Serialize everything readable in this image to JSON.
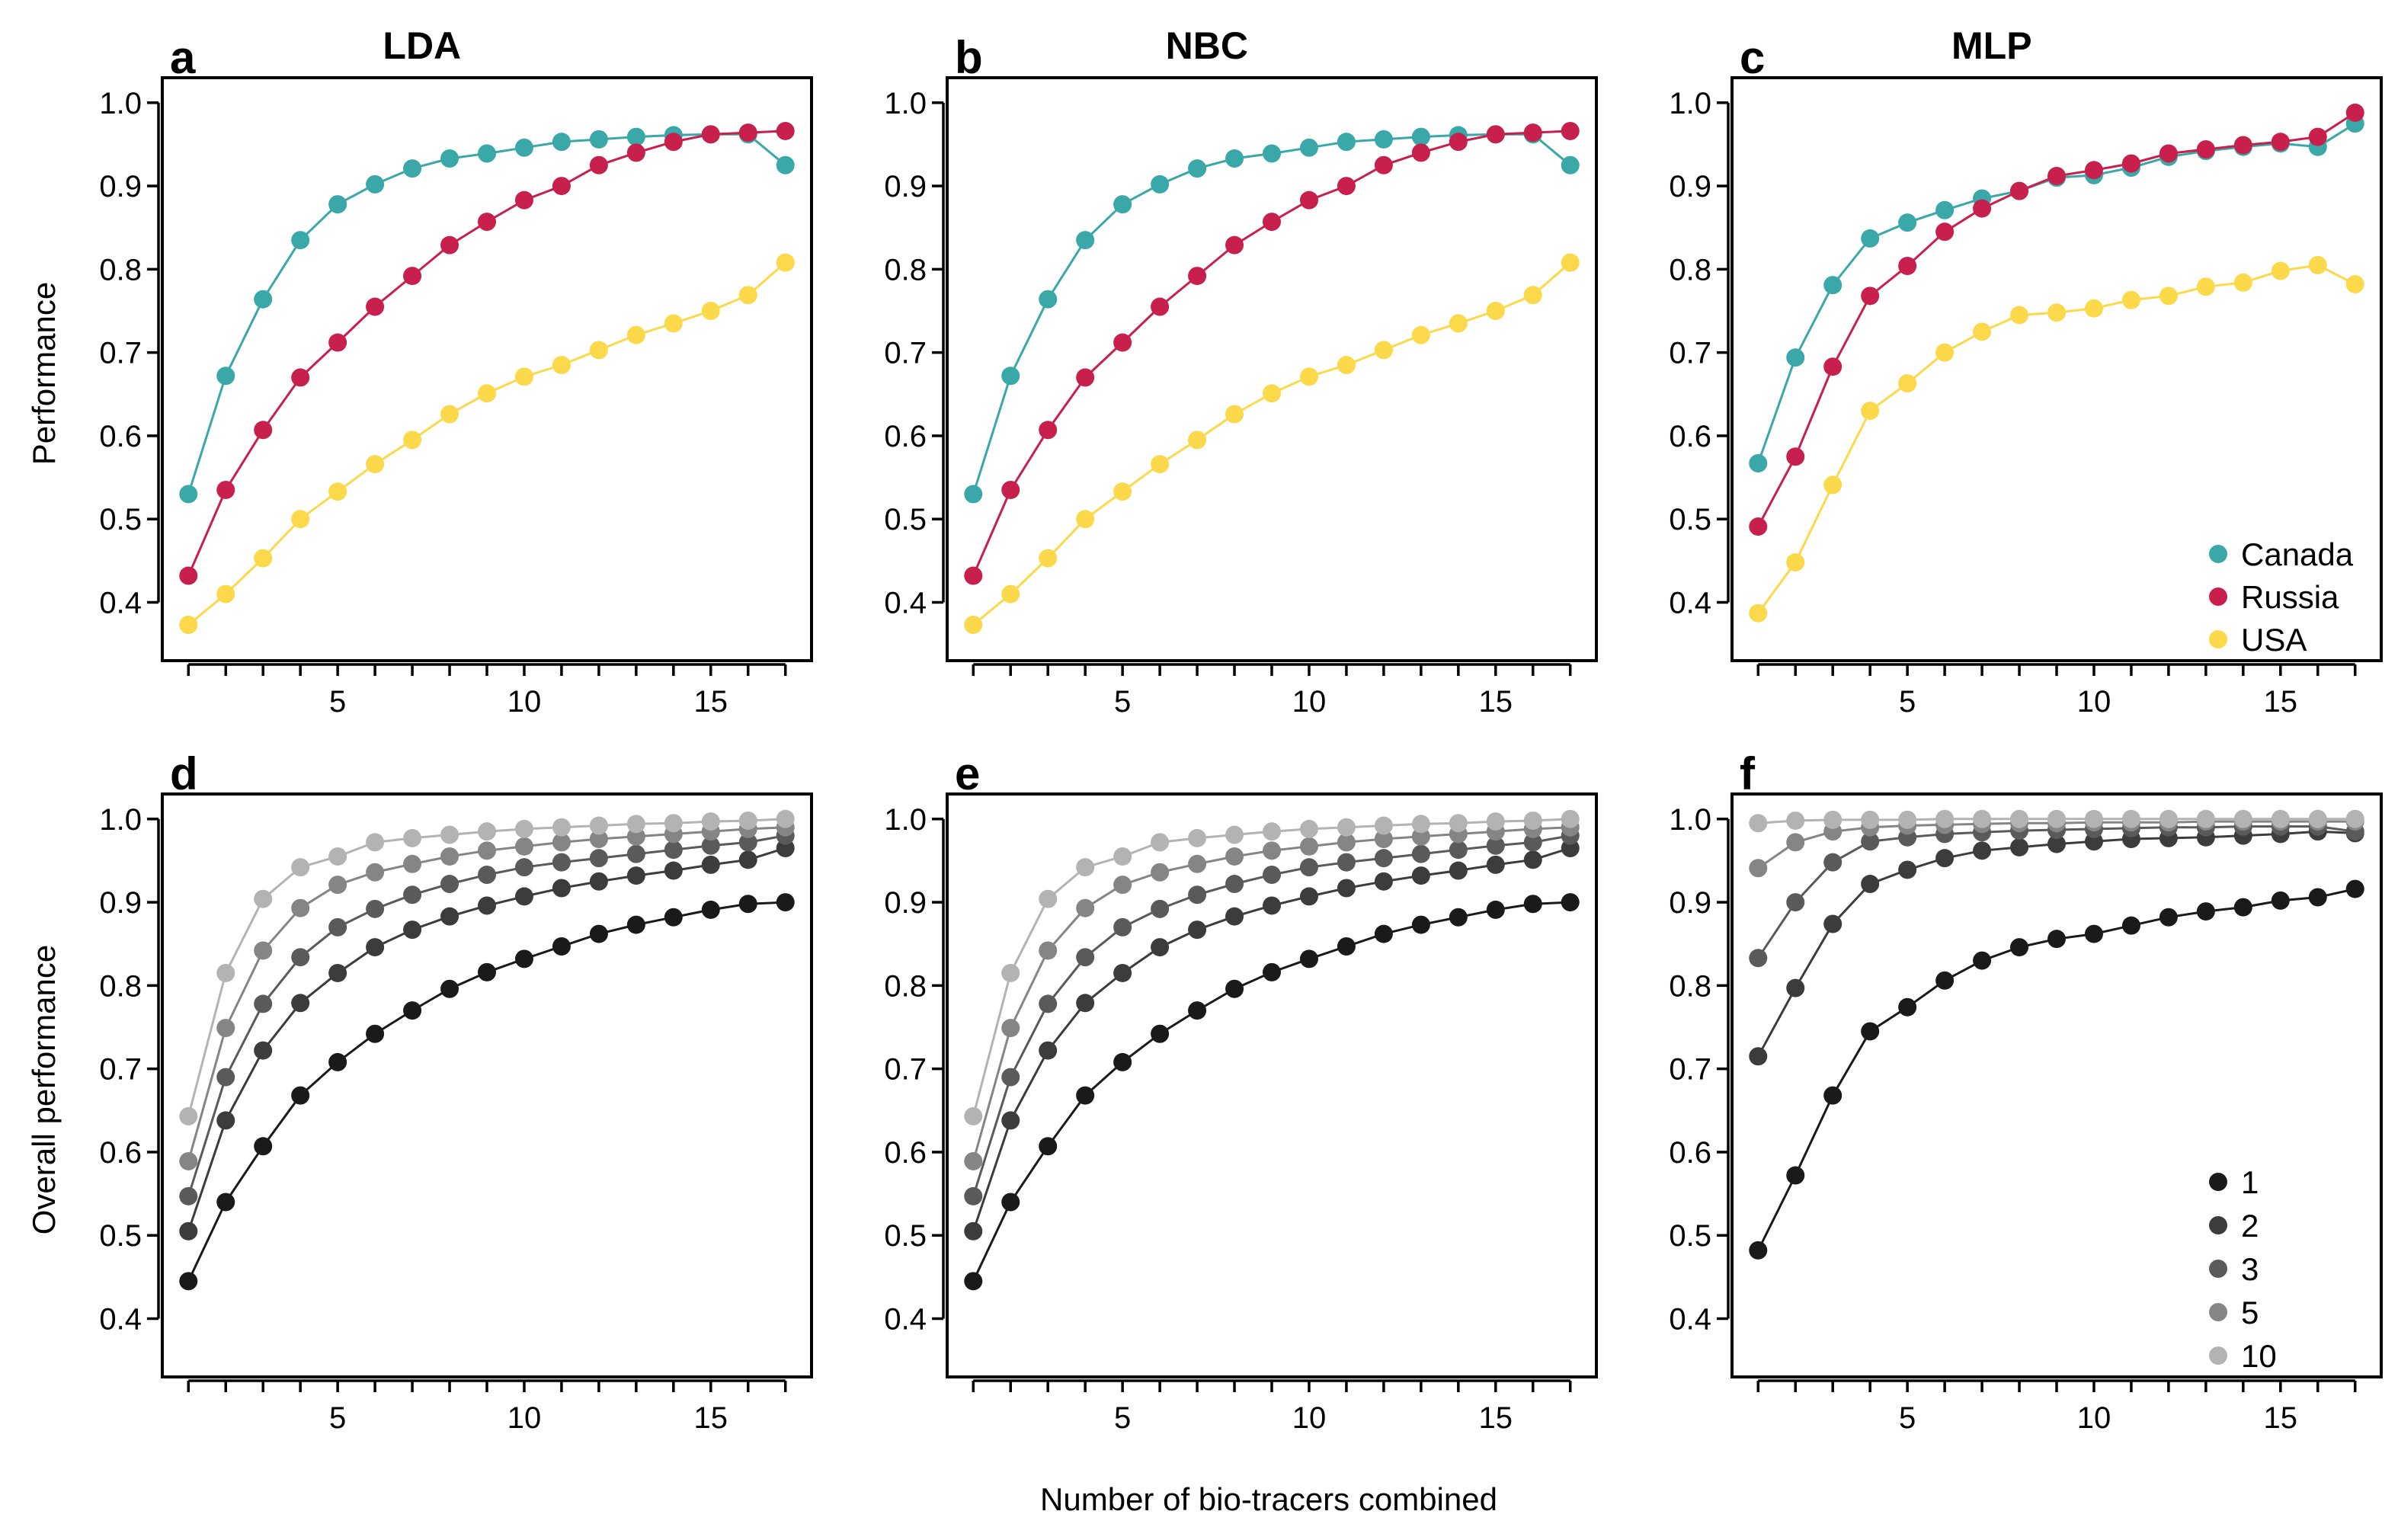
{
  "figure": {
    "xlabel_shared": "Number of bio-tracers combined",
    "ylabel_top": "Performance",
    "ylabel_bottom": "Overall performance"
  },
  "chart_data": [
    {
      "id": "a",
      "letter": "a",
      "title": "LDA",
      "type": "line",
      "x": [
        1,
        2,
        3,
        4,
        5,
        6,
        7,
        8,
        9,
        10,
        11,
        12,
        13,
        14,
        15,
        16,
        17
      ],
      "xticks": [
        5,
        10,
        15
      ],
      "xlim": [
        0.3,
        17.7
      ],
      "yticks": [
        0.4,
        0.5,
        0.6,
        0.7,
        0.8,
        0.9,
        1.0
      ],
      "ylim": [
        0.33,
        1.03
      ],
      "ylabel": "Performance",
      "series": [
        {
          "name": "Canada",
          "color": "#3aa8a8",
          "values": [
            0.53,
            0.672,
            0.764,
            0.835,
            0.878,
            0.902,
            0.921,
            0.933,
            0.939,
            0.946,
            0.953,
            0.956,
            0.959,
            0.961,
            0.962,
            0.962,
            0.925
          ]
        },
        {
          "name": "Russia",
          "color": "#c8204c",
          "values": [
            0.432,
            0.535,
            0.607,
            0.67,
            0.712,
            0.755,
            0.792,
            0.829,
            0.857,
            0.883,
            0.9,
            0.925,
            0.94,
            0.953,
            0.962,
            0.964,
            0.966
          ]
        },
        {
          "name": "USA",
          "color": "#fcd94a",
          "values": [
            0.373,
            0.41,
            0.453,
            0.5,
            0.533,
            0.566,
            0.595,
            0.626,
            0.651,
            0.671,
            0.685,
            0.703,
            0.721,
            0.735,
            0.75,
            0.769,
            0.808
          ]
        }
      ]
    },
    {
      "id": "b",
      "letter": "b",
      "title": "NBC",
      "type": "line",
      "x": [
        1,
        2,
        3,
        4,
        5,
        6,
        7,
        8,
        9,
        10,
        11,
        12,
        13,
        14,
        15,
        16,
        17
      ],
      "xticks": [
        5,
        10,
        15
      ],
      "xlim": [
        0.3,
        17.7
      ],
      "yticks": [
        0.4,
        0.5,
        0.6,
        0.7,
        0.8,
        0.9,
        1.0
      ],
      "ylim": [
        0.33,
        1.03
      ],
      "series": [
        {
          "name": "Canada",
          "color": "#3aa8a8",
          "values": [
            0.53,
            0.672,
            0.764,
            0.835,
            0.878,
            0.902,
            0.921,
            0.933,
            0.939,
            0.946,
            0.953,
            0.956,
            0.959,
            0.961,
            0.962,
            0.962,
            0.925
          ]
        },
        {
          "name": "Russia",
          "color": "#c8204c",
          "values": [
            0.432,
            0.535,
            0.607,
            0.67,
            0.712,
            0.755,
            0.792,
            0.829,
            0.857,
            0.883,
            0.9,
            0.925,
            0.94,
            0.953,
            0.962,
            0.964,
            0.966
          ]
        },
        {
          "name": "USA",
          "color": "#fcd94a",
          "values": [
            0.373,
            0.41,
            0.453,
            0.5,
            0.533,
            0.566,
            0.595,
            0.626,
            0.651,
            0.671,
            0.685,
            0.703,
            0.721,
            0.735,
            0.75,
            0.769,
            0.808
          ]
        }
      ]
    },
    {
      "id": "c",
      "letter": "c",
      "title": "MLP",
      "type": "line",
      "x": [
        1,
        2,
        3,
        4,
        5,
        6,
        7,
        8,
        9,
        10,
        11,
        12,
        13,
        14,
        15,
        16,
        17
      ],
      "xticks": [
        5,
        10,
        15
      ],
      "xlim": [
        0.3,
        17.7
      ],
      "yticks": [
        0.4,
        0.5,
        0.6,
        0.7,
        0.8,
        0.9,
        1.0
      ],
      "ylim": [
        0.33,
        1.03
      ],
      "legend": {
        "position": "bottom-right",
        "entries": [
          "Canada",
          "Russia",
          "USA"
        ]
      },
      "series": [
        {
          "name": "Canada",
          "color": "#3aa8a8",
          "values": [
            0.567,
            0.694,
            0.781,
            0.837,
            0.856,
            0.871,
            0.885,
            0.894,
            0.91,
            0.913,
            0.922,
            0.935,
            0.942,
            0.947,
            0.951,
            0.947,
            0.975
          ]
        },
        {
          "name": "Russia",
          "color": "#c8204c",
          "values": [
            0.491,
            0.575,
            0.683,
            0.768,
            0.804,
            0.845,
            0.873,
            0.894,
            0.912,
            0.919,
            0.927,
            0.939,
            0.944,
            0.949,
            0.953,
            0.959,
            0.988
          ]
        },
        {
          "name": "USA",
          "color": "#fcd94a",
          "values": [
            0.387,
            0.448,
            0.541,
            0.63,
            0.663,
            0.7,
            0.725,
            0.745,
            0.748,
            0.753,
            0.763,
            0.768,
            0.779,
            0.784,
            0.798,
            0.805,
            0.782
          ]
        }
      ]
    },
    {
      "id": "d",
      "letter": "d",
      "title": "",
      "type": "line",
      "x": [
        1,
        2,
        3,
        4,
        5,
        6,
        7,
        8,
        9,
        10,
        11,
        12,
        13,
        14,
        15,
        16,
        17
      ],
      "xticks": [
        5,
        10,
        15
      ],
      "xlim": [
        0.3,
        17.7
      ],
      "yticks": [
        0.4,
        0.5,
        0.6,
        0.7,
        0.8,
        0.9,
        1.0
      ],
      "ylim": [
        0.33,
        1.03
      ],
      "ylabel": "Overall performance",
      "series": [
        {
          "name": "1",
          "color": "#1a1a1a",
          "values": [
            0.445,
            0.54,
            0.607,
            0.668,
            0.708,
            0.742,
            0.77,
            0.796,
            0.816,
            0.832,
            0.847,
            0.862,
            0.873,
            0.882,
            0.891,
            0.898,
            0.9
          ]
        },
        {
          "name": "2",
          "color": "#3c3c3c",
          "values": [
            0.505,
            0.638,
            0.722,
            0.779,
            0.815,
            0.846,
            0.867,
            0.883,
            0.896,
            0.907,
            0.917,
            0.925,
            0.932,
            0.938,
            0.945,
            0.951,
            0.965
          ]
        },
        {
          "name": "3",
          "color": "#5a5a5a",
          "values": [
            0.547,
            0.69,
            0.778,
            0.834,
            0.87,
            0.892,
            0.909,
            0.922,
            0.933,
            0.942,
            0.948,
            0.953,
            0.958,
            0.963,
            0.968,
            0.972,
            0.98
          ]
        },
        {
          "name": "5",
          "color": "#858585",
          "values": [
            0.589,
            0.749,
            0.842,
            0.893,
            0.921,
            0.936,
            0.946,
            0.955,
            0.962,
            0.967,
            0.972,
            0.976,
            0.979,
            0.982,
            0.985,
            0.988,
            0.99
          ]
        },
        {
          "name": "10",
          "color": "#b3b3b3",
          "values": [
            0.643,
            0.815,
            0.904,
            0.942,
            0.955,
            0.972,
            0.977,
            0.981,
            0.985,
            0.988,
            0.99,
            0.992,
            0.994,
            0.995,
            0.997,
            0.998,
            1.0
          ]
        }
      ]
    },
    {
      "id": "e",
      "letter": "e",
      "title": "",
      "type": "line",
      "x": [
        1,
        2,
        3,
        4,
        5,
        6,
        7,
        8,
        9,
        10,
        11,
        12,
        13,
        14,
        15,
        16,
        17
      ],
      "xticks": [
        5,
        10,
        15
      ],
      "xlim": [
        0.3,
        17.7
      ],
      "yticks": [
        0.4,
        0.5,
        0.6,
        0.7,
        0.8,
        0.9,
        1.0
      ],
      "ylim": [
        0.33,
        1.03
      ],
      "series": [
        {
          "name": "1",
          "color": "#1a1a1a",
          "values": [
            0.445,
            0.54,
            0.607,
            0.668,
            0.708,
            0.742,
            0.77,
            0.796,
            0.816,
            0.832,
            0.847,
            0.862,
            0.873,
            0.882,
            0.891,
            0.898,
            0.9
          ]
        },
        {
          "name": "2",
          "color": "#3c3c3c",
          "values": [
            0.505,
            0.638,
            0.722,
            0.779,
            0.815,
            0.846,
            0.867,
            0.883,
            0.896,
            0.907,
            0.917,
            0.925,
            0.932,
            0.938,
            0.945,
            0.951,
            0.965
          ]
        },
        {
          "name": "3",
          "color": "#5a5a5a",
          "values": [
            0.547,
            0.69,
            0.778,
            0.834,
            0.87,
            0.892,
            0.909,
            0.922,
            0.933,
            0.942,
            0.948,
            0.953,
            0.958,
            0.963,
            0.968,
            0.972,
            0.98
          ]
        },
        {
          "name": "5",
          "color": "#858585",
          "values": [
            0.589,
            0.749,
            0.842,
            0.893,
            0.921,
            0.936,
            0.946,
            0.955,
            0.962,
            0.967,
            0.972,
            0.976,
            0.979,
            0.982,
            0.985,
            0.988,
            0.99
          ]
        },
        {
          "name": "10",
          "color": "#b3b3b3",
          "values": [
            0.643,
            0.815,
            0.904,
            0.942,
            0.955,
            0.972,
            0.977,
            0.981,
            0.985,
            0.988,
            0.99,
            0.992,
            0.994,
            0.995,
            0.997,
            0.998,
            1.0
          ]
        }
      ]
    },
    {
      "id": "f",
      "letter": "f",
      "title": "",
      "type": "line",
      "x": [
        1,
        2,
        3,
        4,
        5,
        6,
        7,
        8,
        9,
        10,
        11,
        12,
        13,
        14,
        15,
        16,
        17
      ],
      "xticks": [
        5,
        10,
        15
      ],
      "xlim": [
        0.3,
        17.7
      ],
      "yticks": [
        0.4,
        0.5,
        0.6,
        0.7,
        0.8,
        0.9,
        1.0
      ],
      "ylim": [
        0.33,
        1.03
      ],
      "legend": {
        "position": "bottom-right",
        "entries": [
          "1",
          "2",
          "3",
          "5",
          "10"
        ]
      },
      "series": [
        {
          "name": "1",
          "color": "#1a1a1a",
          "values": [
            0.482,
            0.572,
            0.668,
            0.745,
            0.774,
            0.806,
            0.83,
            0.846,
            0.856,
            0.862,
            0.872,
            0.882,
            0.889,
            0.894,
            0.902,
            0.906,
            0.916
          ]
        },
        {
          "name": "2",
          "color": "#3c3c3c",
          "values": [
            0.715,
            0.797,
            0.874,
            0.922,
            0.939,
            0.953,
            0.962,
            0.966,
            0.97,
            0.973,
            0.976,
            0.977,
            0.978,
            0.98,
            0.982,
            0.985,
            0.983
          ]
        },
        {
          "name": "3",
          "color": "#5a5a5a",
          "values": [
            0.833,
            0.9,
            0.948,
            0.973,
            0.978,
            0.982,
            0.984,
            0.986,
            0.987,
            0.988,
            0.989,
            0.99,
            0.99,
            0.991,
            0.991,
            0.991,
            0.985
          ]
        },
        {
          "name": "5",
          "color": "#858585",
          "values": [
            0.941,
            0.972,
            0.985,
            0.99,
            0.992,
            0.993,
            0.994,
            0.995,
            0.995,
            0.996,
            0.996,
            0.996,
            0.997,
            0.997,
            0.997,
            0.997,
            0.997
          ]
        },
        {
          "name": "10",
          "color": "#b3b3b3",
          "values": [
            0.995,
            0.998,
            0.999,
            0.999,
            0.999,
            1.0,
            1.0,
            1.0,
            1.0,
            1.0,
            1.0,
            1.0,
            1.0,
            1.0,
            1.0,
            1.0,
            1.0
          ]
        }
      ]
    }
  ]
}
